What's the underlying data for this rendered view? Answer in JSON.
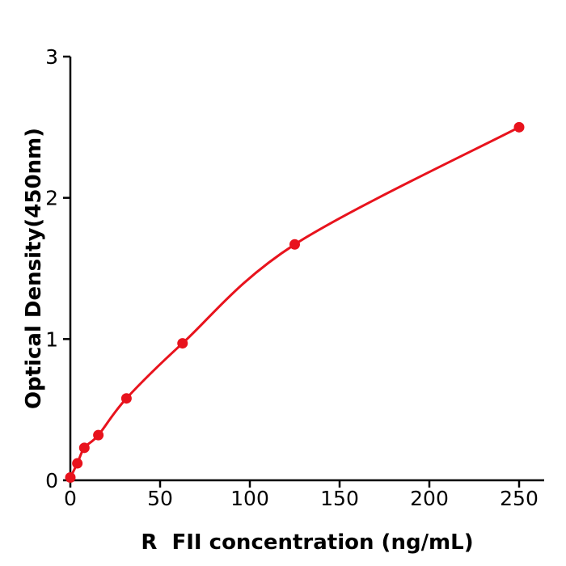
{
  "chart_data": {
    "type": "scatter",
    "title": "",
    "xlabel": "R  FII concentration (ng/mL)",
    "ylabel": "Optical Density(450nm)",
    "x": [
      0,
      3.9,
      7.8,
      15.6,
      31.25,
      62.5,
      125,
      250
    ],
    "y": [
      0.02,
      0.12,
      0.23,
      0.32,
      0.58,
      0.97,
      1.67,
      2.5
    ],
    "fit_line": true,
    "marker": "circle",
    "x_ticks": [
      0,
      50,
      100,
      150,
      200,
      250
    ],
    "y_ticks": [
      0,
      1,
      2,
      3
    ],
    "xlim": [
      0,
      264
    ],
    "ylim": [
      0,
      3
    ],
    "grid": false,
    "legend": null,
    "series_color": "#e8131d",
    "axis_color": "#000000",
    "background_color": "#ffffff"
  }
}
